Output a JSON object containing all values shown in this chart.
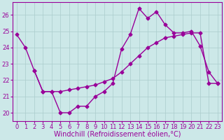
{
  "line1_x": [
    0,
    1,
    2,
    3,
    4,
    5,
    6,
    7,
    8,
    9,
    10,
    11,
    12,
    13,
    14,
    15,
    16,
    17,
    18,
    19,
    20,
    21,
    22,
    23
  ],
  "line1_y": [
    24.8,
    24.0,
    22.6,
    21.3,
    21.3,
    20.0,
    20.0,
    20.4,
    20.4,
    21.0,
    21.3,
    21.8,
    23.9,
    24.8,
    26.4,
    25.8,
    26.2,
    25.4,
    24.9,
    24.9,
    25.0,
    24.1,
    22.5,
    21.8
  ],
  "line2_x": [
    2,
    3,
    4,
    5,
    6,
    7,
    8,
    9,
    10,
    11,
    12,
    13,
    14,
    15,
    16,
    17,
    18,
    19,
    20,
    21,
    22,
    23
  ],
  "line2_y": [
    22.6,
    21.3,
    21.3,
    21.3,
    21.4,
    21.5,
    21.6,
    21.7,
    21.9,
    22.1,
    22.5,
    23.0,
    23.5,
    24.0,
    24.3,
    24.6,
    24.7,
    24.8,
    24.9,
    24.9,
    21.8,
    21.8
  ],
  "color": "#990099",
  "background_color": "#cce8e8",
  "grid_color": "#aacccc",
  "xlabel": "Windchill (Refroidissement éolien,°C)",
  "ylim": [
    19.5,
    26.8
  ],
  "xlim": [
    -0.5,
    23.5
  ],
  "yticks": [
    20,
    21,
    22,
    23,
    24,
    25,
    26
  ],
  "xticks": [
    0,
    1,
    2,
    3,
    4,
    5,
    6,
    7,
    8,
    9,
    10,
    11,
    12,
    13,
    14,
    15,
    16,
    17,
    18,
    19,
    20,
    21,
    22,
    23
  ],
  "marker": "D",
  "markersize": 2.5,
  "linewidth": 1.0,
  "xlabel_fontsize": 7,
  "tick_fontsize": 6
}
